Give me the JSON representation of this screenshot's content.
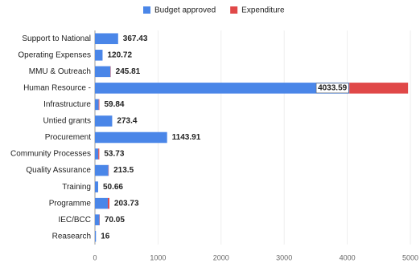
{
  "chart_data": {
    "type": "stacked-bar-horizontal",
    "categories": [
      "Support to National",
      "Operating Expenses",
      "MMU & Outreach",
      "Human Resource -",
      "Infrastructure",
      "Untied grants",
      "Procurement",
      "Community Processes",
      "Quality Assurance",
      "Training",
      "Programme",
      "IEC/BCC",
      "Reasearch"
    ],
    "series": [
      {
        "name": "Budget approved",
        "color": "#4a86e8",
        "values": [
          367.43,
          120.72,
          245.81,
          4033.59,
          59.84,
          273.4,
          1143.91,
          53.73,
          213.5,
          50.66,
          203.73,
          70.05,
          16
        ]
      },
      {
        "name": "Expenditure",
        "color": "#e04848",
        "values": [
          0,
          0,
          5,
          930,
          10,
          0,
          0,
          15,
          5,
          0,
          25,
          5,
          0
        ]
      }
    ],
    "xlim": [
      0,
      5000
    ],
    "xticks": [
      0,
      1000,
      2000,
      3000,
      4000,
      5000
    ],
    "legend": "top"
  }
}
